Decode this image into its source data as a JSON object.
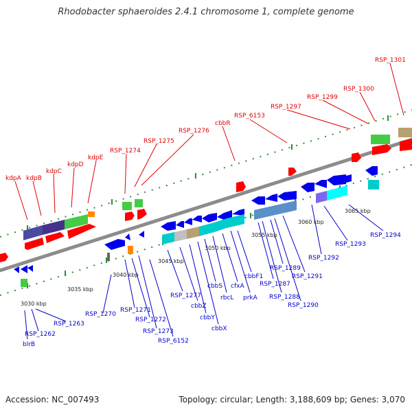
{
  "title": "Rhodobacter sphaeroides 2.4.1 chromosome 1, complete genome",
  "footer": {
    "accession": "Accession: NC_007493",
    "summary": "Topology: circular; Length: 3,188,609 bp; Genes: 3,070"
  },
  "colors": {
    "backbone": "#8c8c8c",
    "tick": "#2e8b2e",
    "forward_label": "#e00000",
    "reverse_label": "#0000cc",
    "forward_gene": "#ff0000",
    "reverse_gene": "#0000ee",
    "kdp_blue": "#4a4aa0",
    "kdp_green": "#44cc44",
    "cbb_cyan": "#00cccc",
    "cbb_tan": "#b8a070",
    "steel": "#5a8fc8",
    "orange": "#ff8800",
    "violet": "#7b68ee",
    "grey": "#c0c0c0"
  },
  "kbp_ticks": [
    "3030 kbp",
    "3035 kbp",
    "3040 kbp",
    "3045 kbp",
    "3050 kbp",
    "3055 kbp",
    "3060 kbp",
    "3065 kbp"
  ],
  "forward_labels": [
    "kdpA",
    "kdpB",
    "kdpC",
    "kdpD",
    "kdpE",
    "RSP_1274",
    "RSP_1275",
    "RSP_1276",
    "cbbR",
    "RSP_6153",
    "RSP_1297",
    "RSP_1299",
    "RSP_1300",
    "RSP_1301"
  ],
  "reverse_labels": [
    "blrB",
    "RSP_1262",
    "RSP_1263",
    "RSP_1270",
    "RSP_1271",
    "RSP_1272",
    "RSP_1273",
    "RSP_6152",
    "RSP_1277",
    "cbbZ",
    "cbbY",
    "cbbX",
    "cbbS",
    "rbcL",
    "cfxA",
    "prkA",
    "cbbF1",
    "RSP_1287",
    "RSP_1288",
    "RSP_1289",
    "RSP_1290",
    "RSP_1291",
    "RSP_1292",
    "RSP_1293",
    "RSP_1294"
  ]
}
